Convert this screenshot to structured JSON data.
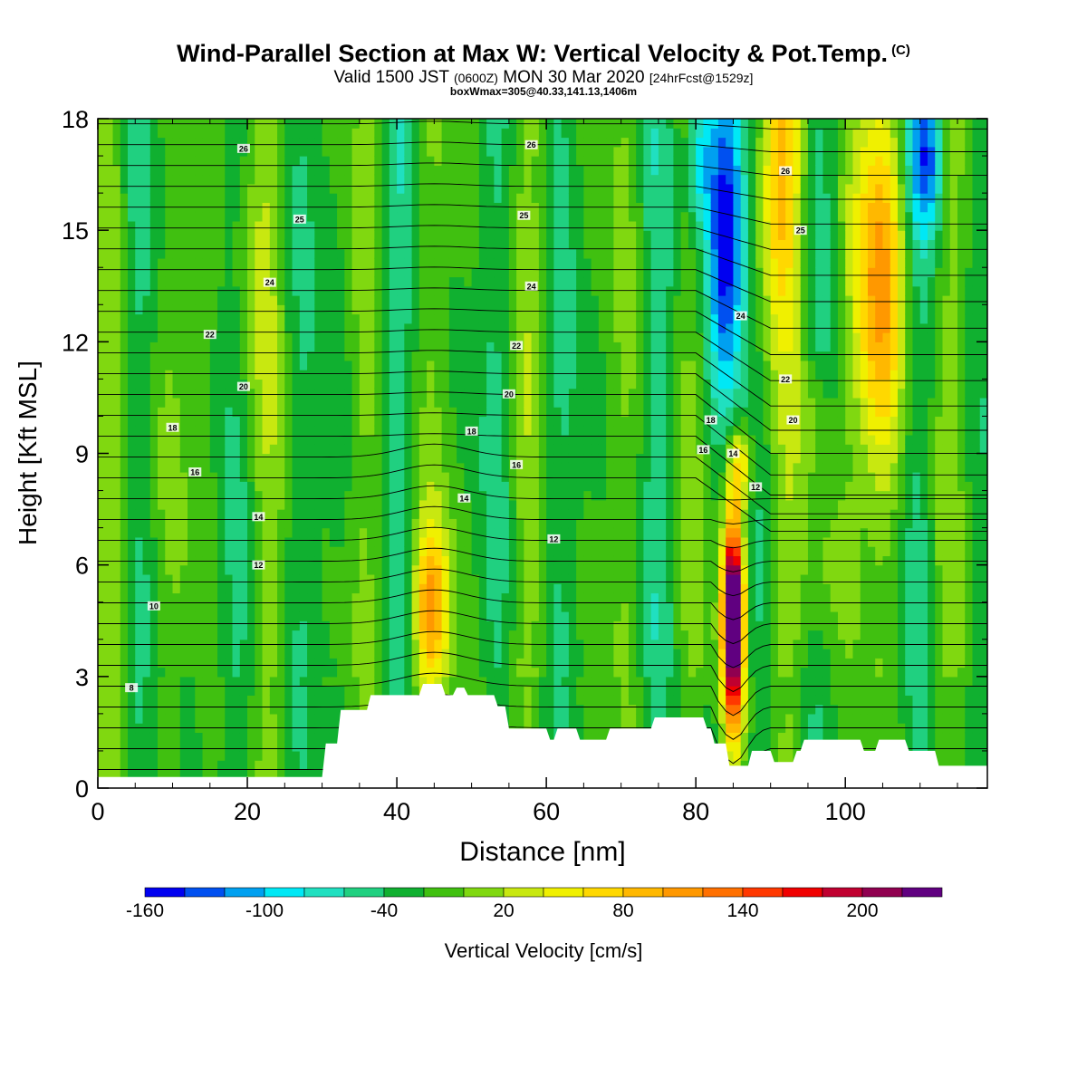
{
  "title": "Wind-Parallel Section at Max W: Vertical Velocity & Pot.Temp.",
  "title_mark": "(C)",
  "subtitle": {
    "part1": "Valid 1500 JST",
    "part2": "(0600Z)",
    "part3": "MON 30 Mar 2020",
    "part4": "[24hrFcst@1529z]"
  },
  "subtitle2": "boxWmax=305@40.33,141.13,1406m",
  "chart_data": {
    "type": "heatmap",
    "xlabel": "Distance [nm]",
    "ylabel": "Height [Kft MSL]",
    "xlim": [
      0,
      119
    ],
    "ylim": [
      0,
      18
    ],
    "x_ticks": [
      0,
      20,
      40,
      60,
      80,
      100
    ],
    "y_ticks": [
      0,
      3,
      6,
      9,
      12,
      15,
      18
    ],
    "colorbar": {
      "label": "Vertical Velocity [cm/s]",
      "tick_labels": [
        "-160",
        "-100",
        "-40",
        "20",
        "80",
        "140",
        "200"
      ],
      "tick_values": [
        -160,
        -100,
        -40,
        20,
        80,
        140,
        200
      ],
      "levels": [
        -160,
        -140,
        -120,
        -100,
        -80,
        -60,
        -40,
        -20,
        0,
        20,
        40,
        60,
        80,
        100,
        120,
        140,
        160,
        180,
        200,
        220,
        240
      ],
      "colors": [
        "#0000f0",
        "#0050f0",
        "#00a0f0",
        "#00e8f5",
        "#20e0c0",
        "#20d080",
        "#10b030",
        "#40c010",
        "#80d810",
        "#c8e810",
        "#f0f000",
        "#ffd800",
        "#ffb800",
        "#ff9800",
        "#ff7000",
        "#ff3800",
        "#f00000",
        "#c00030",
        "#900050",
        "#600080"
      ]
    },
    "terrain_kft": [
      [
        0,
        0.3
      ],
      [
        30,
        0.3
      ],
      [
        30.5,
        1.2
      ],
      [
        32,
        1.2
      ],
      [
        32.5,
        2.1
      ],
      [
        36,
        2.1
      ],
      [
        36.5,
        2.5
      ],
      [
        43,
        2.5
      ],
      [
        43.5,
        2.8
      ],
      [
        46,
        2.8
      ],
      [
        46.5,
        2.5
      ],
      [
        47.5,
        2.5
      ],
      [
        48,
        2.7
      ],
      [
        49,
        2.7
      ],
      [
        49.5,
        2.5
      ],
      [
        53,
        2.5
      ],
      [
        53.5,
        2.2
      ],
      [
        54.5,
        2.2
      ],
      [
        55,
        1.6
      ],
      [
        60,
        1.6
      ],
      [
        60.5,
        1.3
      ],
      [
        61,
        1.3
      ],
      [
        61.5,
        1.6
      ],
      [
        64,
        1.6
      ],
      [
        64.5,
        1.3
      ],
      [
        68,
        1.3
      ],
      [
        68.5,
        1.6
      ],
      [
        74,
        1.6
      ],
      [
        74.5,
        1.9
      ],
      [
        81,
        1.9
      ],
      [
        81.5,
        1.6
      ],
      [
        82,
        1.6
      ],
      [
        82.5,
        1.2
      ],
      [
        84,
        1.2
      ],
      [
        84.5,
        0.6
      ],
      [
        87,
        0.6
      ],
      [
        87.5,
        1.0
      ],
      [
        90,
        1.0
      ],
      [
        90.5,
        0.7
      ],
      [
        93,
        0.7
      ],
      [
        93.5,
        1.0
      ],
      [
        94,
        1.0
      ],
      [
        94.5,
        1.3
      ],
      [
        102,
        1.3
      ],
      [
        102.5,
        1.0
      ],
      [
        104,
        1.0
      ],
      [
        104.5,
        1.3
      ],
      [
        108,
        1.3
      ],
      [
        108.5,
        1.0
      ],
      [
        112,
        1.0
      ],
      [
        112.5,
        0.6
      ],
      [
        119,
        0.6
      ]
    ],
    "isentrope_labels": [
      {
        "x": 19.5,
        "y": 17.2,
        "text": "26"
      },
      {
        "x": 58,
        "y": 17.3,
        "text": "26"
      },
      {
        "x": 27,
        "y": 15.3,
        "text": "25"
      },
      {
        "x": 57,
        "y": 15.4,
        "text": "25"
      },
      {
        "x": 23,
        "y": 13.6,
        "text": "24"
      },
      {
        "x": 58,
        "y": 13.5,
        "text": "24"
      },
      {
        "x": 15,
        "y": 12.2,
        "text": "22"
      },
      {
        "x": 56,
        "y": 11.9,
        "text": "22"
      },
      {
        "x": 19.5,
        "y": 10.8,
        "text": "20"
      },
      {
        "x": 55,
        "y": 10.6,
        "text": "20"
      },
      {
        "x": 10,
        "y": 9.7,
        "text": "18"
      },
      {
        "x": 50,
        "y": 9.6,
        "text": "18"
      },
      {
        "x": 13,
        "y": 8.5,
        "text": "16"
      },
      {
        "x": 56,
        "y": 8.7,
        "text": "16"
      },
      {
        "x": 21.5,
        "y": 7.3,
        "text": "14"
      },
      {
        "x": 49,
        "y": 7.8,
        "text": "14"
      },
      {
        "x": 21.5,
        "y": 6.0,
        "text": "12"
      },
      {
        "x": 61,
        "y": 6.7,
        "text": "12"
      },
      {
        "x": 7.5,
        "y": 4.9,
        "text": "10"
      },
      {
        "x": 4.5,
        "y": 2.7,
        "text": "8"
      },
      {
        "x": 82,
        "y": 9.9,
        "text": "18"
      },
      {
        "x": 81,
        "y": 9.1,
        "text": "16"
      },
      {
        "x": 85,
        "y": 9.0,
        "text": "14"
      },
      {
        "x": 88,
        "y": 8.1,
        "text": "12"
      },
      {
        "x": 92,
        "y": 16.6,
        "text": "26"
      },
      {
        "x": 94,
        "y": 15.0,
        "text": "25"
      },
      {
        "x": 86,
        "y": 12.7,
        "text": "24"
      },
      {
        "x": 92,
        "y": 11.0,
        "text": "22"
      },
      {
        "x": 93,
        "y": 9.9,
        "text": "20"
      }
    ]
  }
}
